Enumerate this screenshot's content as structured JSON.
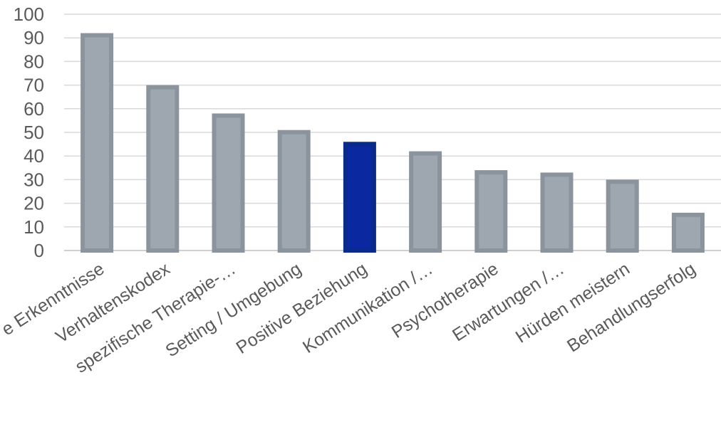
{
  "chart_data": {
    "type": "bar",
    "categories": [
      "e Erkenntnisse",
      "Verhaltenskodex",
      "spezifische Therapie-…",
      "Setting / Umgebung",
      "Positive Beziehung",
      "Kommunikation /…",
      "Psychotherapie",
      "Erwartungen /…",
      "Hürden meistern",
      "Behandlungserfolg"
    ],
    "values": [
      92,
      70,
      58,
      51,
      46,
      42,
      34,
      33,
      30,
      16
    ],
    "highlight_index": 4,
    "ylim": [
      0,
      100
    ],
    "yticks": [
      "0",
      "10",
      "20",
      "30",
      "40",
      "50",
      "60",
      "70",
      "80",
      "90",
      "100"
    ],
    "grid": true,
    "legend": "none",
    "colors": {
      "bar_fill": "#9ea6b0",
      "bar_border": "#8b939d",
      "highlight_fill": "#0a28a0",
      "highlight_border": "#0a2a8a",
      "grid": "#d9d9d9",
      "text": "#5a5a5a"
    }
  }
}
